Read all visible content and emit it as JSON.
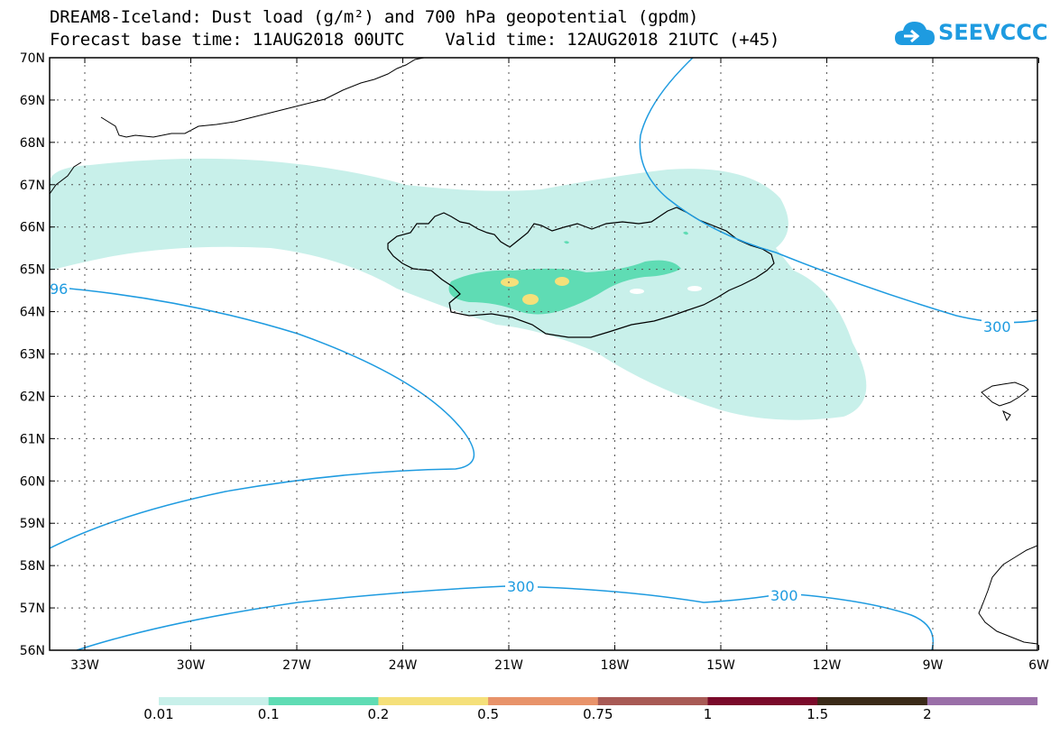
{
  "title": {
    "line1": "DREAM8-Iceland: Dust load (g/m²) and 700 hPa geopotential (gpdm)",
    "line2": "Forecast base time: 11AUG2018 00UTC    Valid time: 12AUG2018 21UTC (+45)"
  },
  "logo": {
    "text": "SEEVCCC",
    "icon": "cloud-icon",
    "color": "#1e9be0"
  },
  "map": {
    "lat_labels": [
      "70N",
      "69N",
      "68N",
      "67N",
      "66N",
      "65N",
      "64N",
      "63N",
      "62N",
      "61N",
      "60N",
      "59N",
      "58N",
      "57N",
      "56N"
    ],
    "lon_labels": [
      "33W",
      "30W",
      "27W",
      "24W",
      "21W",
      "18W",
      "15W",
      "12W",
      "9W",
      "6W"
    ],
    "contour_labels": [
      "96",
      "300",
      "300",
      "300"
    ],
    "contour_color": "#1e9be0"
  },
  "colorbar": {
    "labels": [
      "0.01",
      "0.1",
      "0.2",
      "0.5",
      "0.75",
      "1",
      "1.5",
      "2"
    ],
    "colors": [
      "#c8f0ea",
      "#5fdcb4",
      "#f5e07a",
      "#e8936a",
      "#a85a55",
      "#7a0a2a",
      "#3a2a18",
      "#9a6fa8"
    ]
  }
}
